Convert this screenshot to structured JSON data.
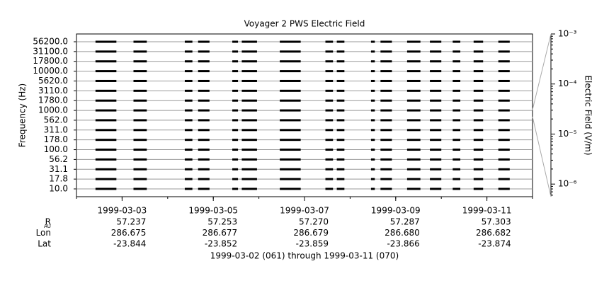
{
  "chart_data": {
    "type": "interval",
    "title": "Voyager 2 PWS Electric Field",
    "y_label": "Frequency (Hz)",
    "y2_label": "Electric Field (V/m)",
    "categories": [
      "56200.0",
      "31100.0",
      "17800.0",
      "10000.0",
      "5620.0",
      "3110.0",
      "1780.0",
      "1000.0",
      "562.0",
      "311.0",
      "178.0",
      "100.0",
      "56.2",
      "31.1",
      "17.8",
      "10.0"
    ],
    "xlim": [
      "1999-03-02",
      "1999-03-12"
    ],
    "xticks": [
      "1999-03-03",
      "1999-03-05",
      "1999-03-07",
      "1999-03-09",
      "1999-03-11"
    ],
    "y2lim": [
      5.6e-07,
      0.001
    ],
    "y2scale": "log",
    "y2ticks": [
      {
        "value": 0.001,
        "label": "10⁻³"
      },
      {
        "value": 0.0001,
        "label": "10⁻⁴"
      },
      {
        "value": 1e-05,
        "label": "10⁻⁵"
      },
      {
        "value": 1e-06,
        "label": "10⁻⁶"
      }
    ],
    "color": "#000000",
    "grid": true,
    "intervals": [
      [
        "1999-03-02T10:00",
        "1999-03-02T21:00"
      ],
      [
        "1999-03-03T06:00",
        "1999-03-03T13:00"
      ],
      [
        "1999-03-04T09:00",
        "1999-03-04T13:00"
      ],
      [
        "1999-03-04T16:00",
        "1999-03-04T22:00"
      ],
      [
        "1999-03-05T10:00",
        "1999-03-05T13:00"
      ],
      [
        "1999-03-05T15:00",
        "1999-03-05T23:00"
      ],
      [
        "1999-03-06T11:00",
        "1999-03-06T22:00"
      ],
      [
        "1999-03-07T11:00",
        "1999-03-07T15:00"
      ],
      [
        "1999-03-07T17:00",
        "1999-03-07T21:00"
      ],
      [
        "1999-03-08T11:00",
        "1999-03-08T13:00"
      ],
      [
        "1999-03-08T16:00",
        "1999-03-08T22:00"
      ],
      [
        "1999-03-09T06:00",
        "1999-03-09T13:00"
      ],
      [
        "1999-03-09T18:00",
        "1999-03-10T00:00"
      ],
      [
        "1999-03-10T06:00",
        "1999-03-10T10:00"
      ],
      [
        "1999-03-10T17:00",
        "1999-03-10T22:00"
      ],
      [
        "1999-03-11T06:00",
        "1999-03-11T12:00"
      ]
    ],
    "ephemeris": {
      "rows": [
        {
          "label": "R",
          "subscript": "AU",
          "values": [
            "57.237",
            "57.253",
            "57.270",
            "57.287",
            "57.303"
          ]
        },
        {
          "label": "Lon",
          "values": [
            "286.675",
            "286.677",
            "286.679",
            "286.680",
            "286.682"
          ]
        },
        {
          "label": "Lat",
          "values": [
            "-23.844",
            "-23.852",
            "-23.859",
            "-23.866",
            "-23.874"
          ]
        }
      ]
    },
    "footer": "1999-03-02 (061) through 1999-03-11 (070)"
  }
}
